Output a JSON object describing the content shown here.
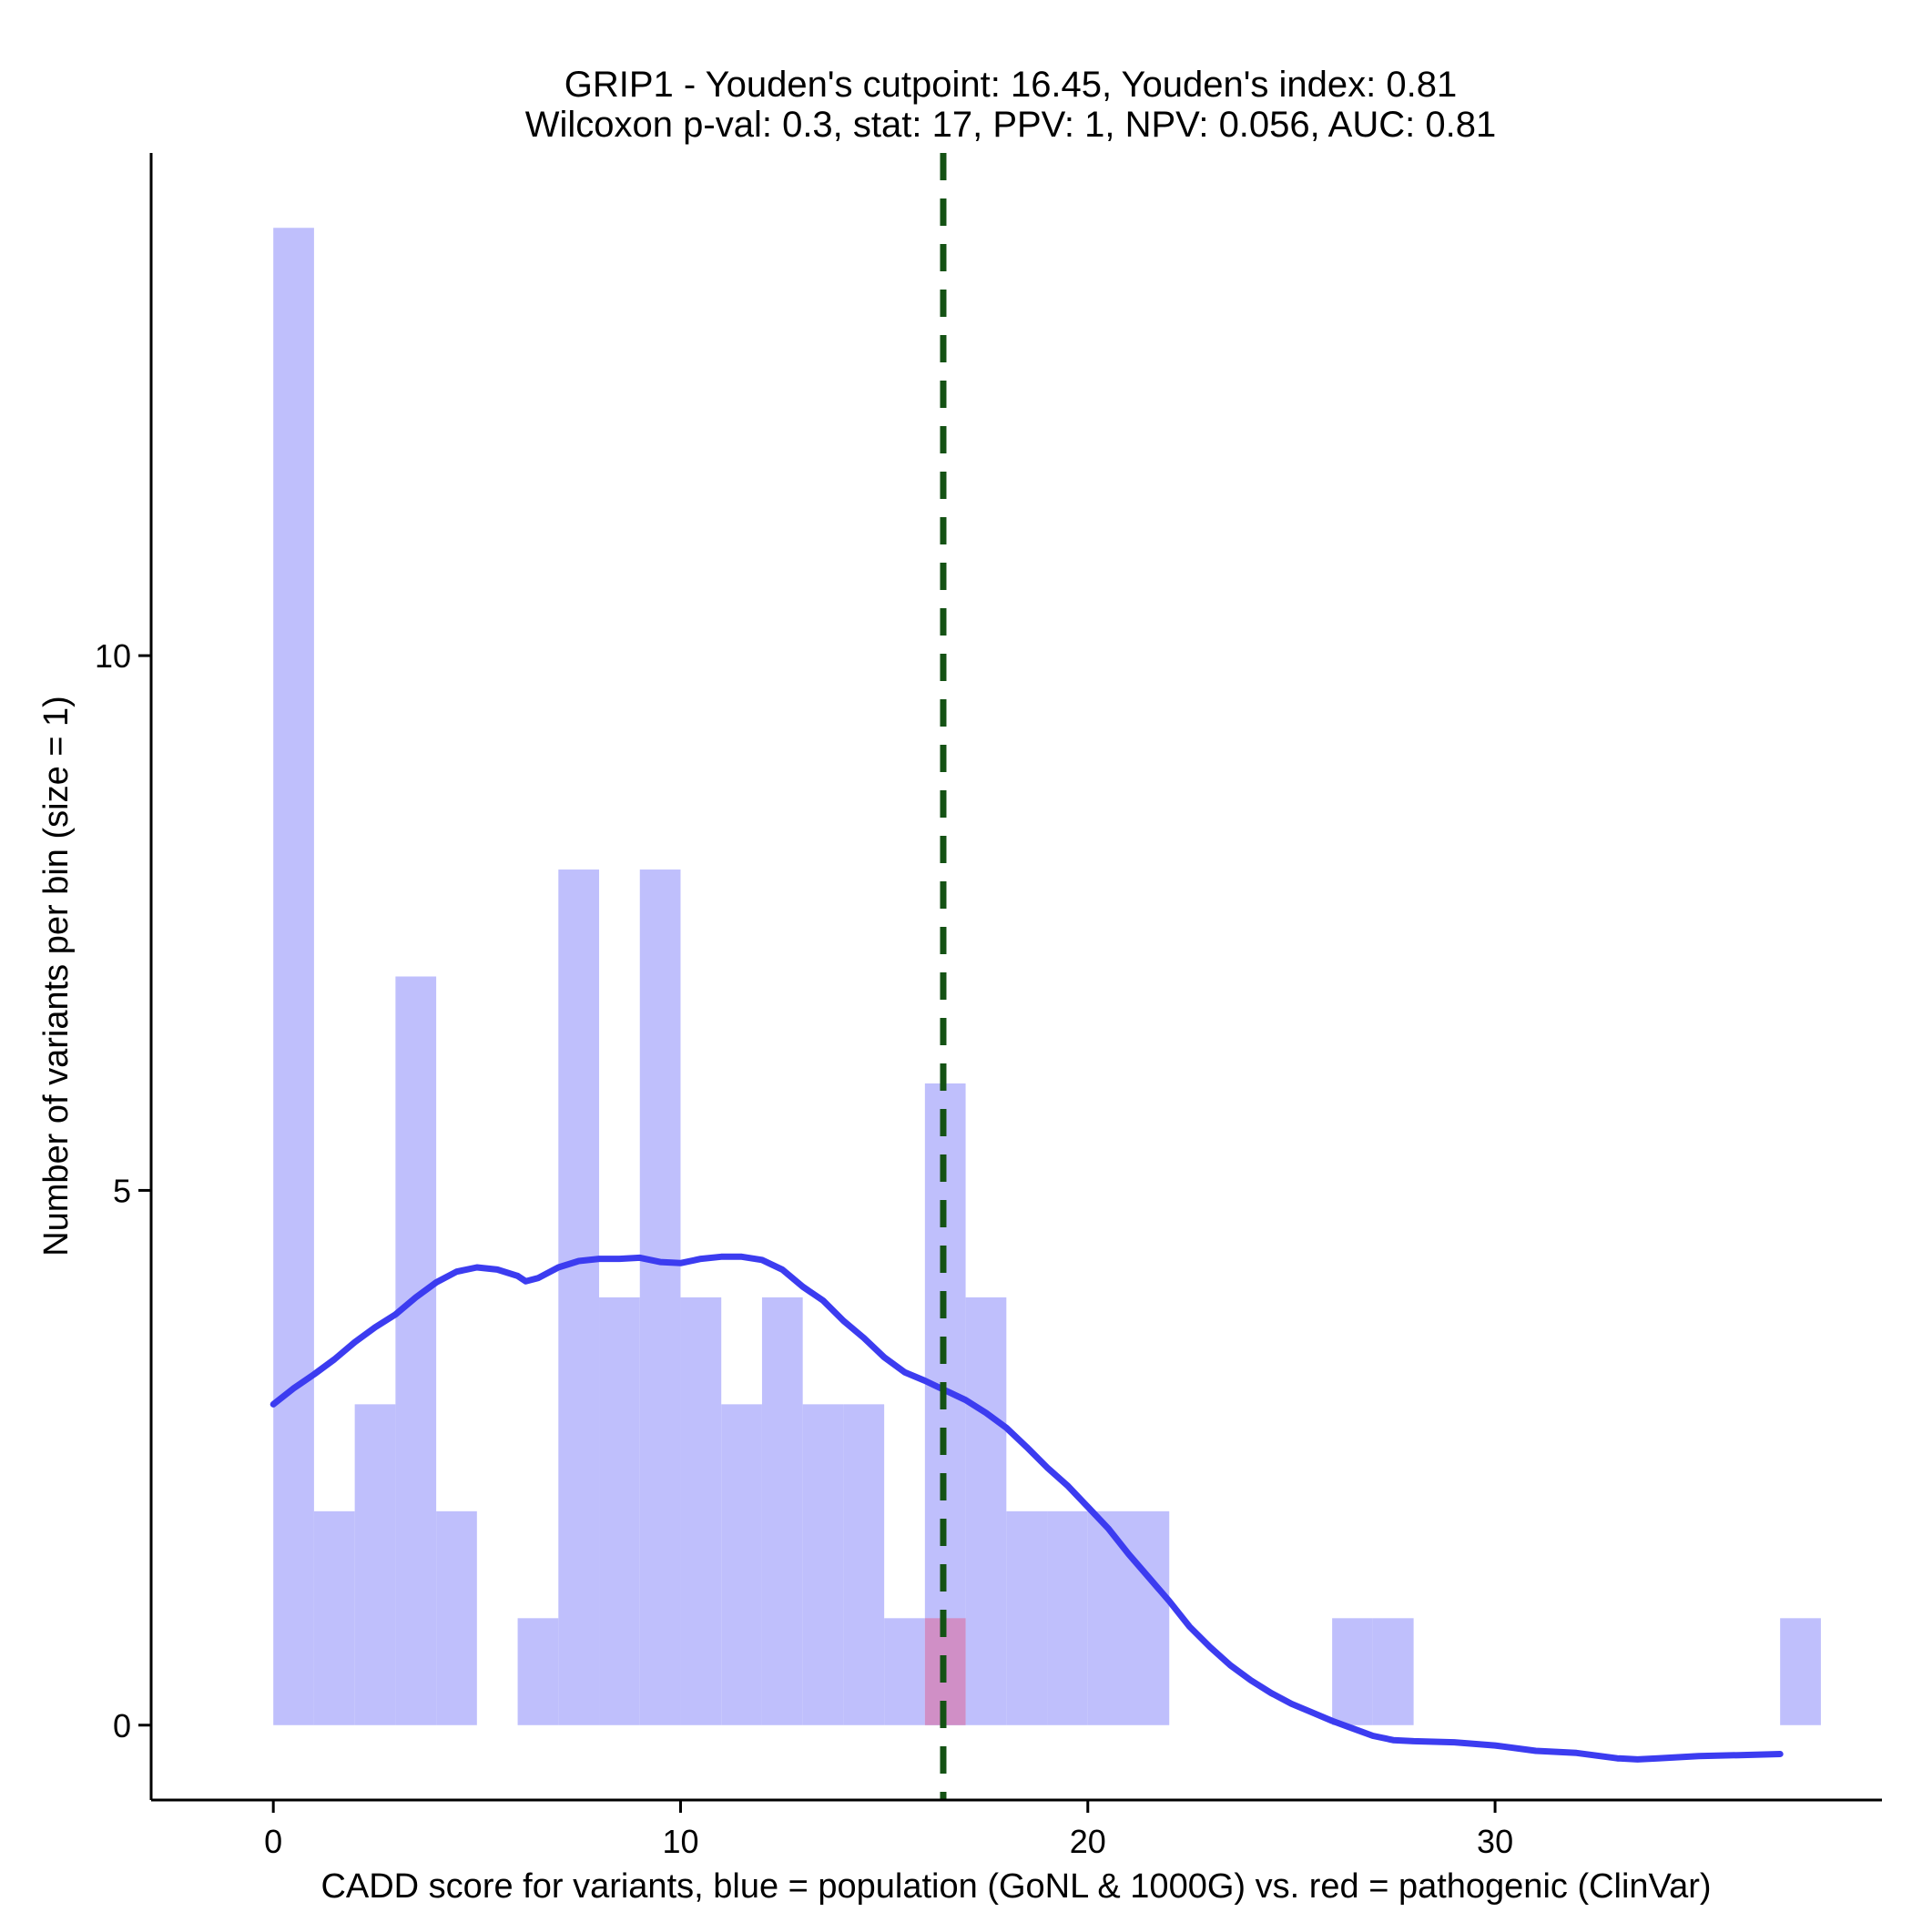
{
  "chart_data": {
    "type": "bar",
    "title": "GRIP1 - Youden's cutpoint: 16.45, Youden's index: 0.81",
    "subtitle": "Wilcoxon p-val: 0.3, stat: 17, PPV: 1, NPV: 0.056, AUC: 0.81",
    "xlabel": "CADD score for variants, blue = population (GoNL & 1000G) vs. red = pathogenic (ClinVar)",
    "ylabel": "Number of variants per bin (size = 1)",
    "xlim": [
      -3,
      39.5
    ],
    "ylim": [
      -0.7,
      14.7
    ],
    "x_ticks": [
      0,
      10,
      20,
      30
    ],
    "y_ticks": [
      0,
      5,
      10
    ],
    "bin_width": 1,
    "series": [
      {
        "name": "population (GoNL & 1000G)",
        "color": "#bfbffc",
        "bins": [
          {
            "x": 0,
            "count": 14
          },
          {
            "x": 1,
            "count": 2
          },
          {
            "x": 2,
            "count": 3
          },
          {
            "x": 3,
            "count": 7
          },
          {
            "x": 4,
            "count": 2
          },
          {
            "x": 6,
            "count": 1
          },
          {
            "x": 7,
            "count": 8
          },
          {
            "x": 8,
            "count": 4
          },
          {
            "x": 9,
            "count": 8
          },
          {
            "x": 10,
            "count": 4
          },
          {
            "x": 11,
            "count": 3
          },
          {
            "x": 12,
            "count": 4
          },
          {
            "x": 13,
            "count": 3
          },
          {
            "x": 14,
            "count": 3
          },
          {
            "x": 15,
            "count": 1
          },
          {
            "x": 16,
            "count": 6
          },
          {
            "x": 17,
            "count": 4
          },
          {
            "x": 18,
            "count": 2
          },
          {
            "x": 19,
            "count": 2
          },
          {
            "x": 20,
            "count": 2
          },
          {
            "x": 21,
            "count": 2
          },
          {
            "x": 26,
            "count": 1
          },
          {
            "x": 27,
            "count": 1
          },
          {
            "x": 37,
            "count": 1
          }
        ]
      },
      {
        "name": "pathogenic (ClinVar)",
        "color": "#d08fc6",
        "bins": [
          {
            "x": 16,
            "count": 1
          }
        ]
      }
    ],
    "density_curve": {
      "color": "#3c3cf0",
      "points": [
        [
          0,
          3.0
        ],
        [
          0.5,
          3.15
        ],
        [
          1,
          3.28
        ],
        [
          1.5,
          3.42
        ],
        [
          2,
          3.58
        ],
        [
          2.5,
          3.72
        ],
        [
          3,
          3.84
        ],
        [
          3.5,
          4.0
        ],
        [
          4,
          4.14
        ],
        [
          4.5,
          4.24
        ],
        [
          5,
          4.28
        ],
        [
          5.5,
          4.26
        ],
        [
          6,
          4.2
        ],
        [
          6.2,
          4.15
        ],
        [
          6.5,
          4.18
        ],
        [
          7,
          4.28
        ],
        [
          7.5,
          4.34
        ],
        [
          8,
          4.36
        ],
        [
          8.5,
          4.36
        ],
        [
          9,
          4.37
        ],
        [
          9.5,
          4.33
        ],
        [
          10,
          4.32
        ],
        [
          10.5,
          4.36
        ],
        [
          11,
          4.38
        ],
        [
          11.5,
          4.38
        ],
        [
          12,
          4.35
        ],
        [
          12.5,
          4.26
        ],
        [
          13,
          4.1
        ],
        [
          13.5,
          3.97
        ],
        [
          14,
          3.78
        ],
        [
          14.5,
          3.62
        ],
        [
          15,
          3.44
        ],
        [
          15.5,
          3.3
        ],
        [
          16,
          3.22
        ],
        [
          16.5,
          3.13
        ],
        [
          17,
          3.04
        ],
        [
          17.5,
          2.92
        ],
        [
          18,
          2.78
        ],
        [
          18.5,
          2.6
        ],
        [
          19,
          2.41
        ],
        [
          19.5,
          2.24
        ],
        [
          20,
          2.04
        ],
        [
          20.5,
          1.84
        ],
        [
          21,
          1.6
        ],
        [
          21.5,
          1.38
        ],
        [
          22,
          1.16
        ],
        [
          22.5,
          0.92
        ],
        [
          23,
          0.73
        ],
        [
          23.5,
          0.56
        ],
        [
          24,
          0.42
        ],
        [
          24.5,
          0.3
        ],
        [
          25,
          0.2
        ],
        [
          25.5,
          0.12
        ],
        [
          26,
          0.04
        ],
        [
          26.5,
          -0.03
        ],
        [
          27,
          -0.1
        ],
        [
          27.5,
          -0.14
        ],
        [
          28,
          -0.15
        ],
        [
          29,
          -0.16
        ],
        [
          30,
          -0.19
        ],
        [
          31,
          -0.24
        ],
        [
          32,
          -0.26
        ],
        [
          33,
          -0.31
        ],
        [
          33.5,
          -0.32
        ],
        [
          34,
          -0.31
        ],
        [
          35,
          -0.29
        ],
        [
          36,
          -0.28
        ],
        [
          37,
          -0.27
        ]
      ]
    },
    "cutpoint": {
      "x": 16.45,
      "color": "#145214",
      "style": "dashed"
    }
  }
}
